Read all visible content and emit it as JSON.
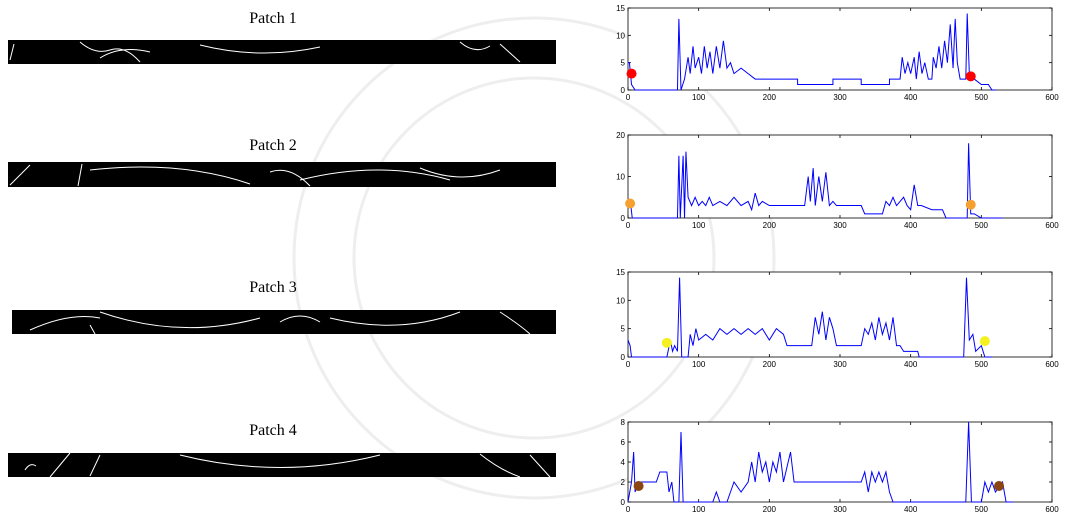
{
  "patches": [
    {
      "label": "Patch 1"
    },
    {
      "label": "Patch 2"
    },
    {
      "label": "Patch 3"
    },
    {
      "label": "Patch 4"
    }
  ],
  "chart_data": [
    {
      "type": "line",
      "xlim": [
        0,
        600
      ],
      "ylim": [
        0,
        15
      ],
      "xticks": [
        0,
        100,
        200,
        300,
        400,
        500,
        600
      ],
      "yticks": [
        0,
        5,
        10,
        15
      ],
      "x": [
        0,
        2,
        5,
        10,
        70,
        72,
        75,
        80,
        85,
        88,
        92,
        95,
        100,
        104,
        108,
        112,
        116,
        120,
        125,
        130,
        135,
        140,
        145,
        150,
        160,
        170,
        180,
        240,
        240,
        290,
        290,
        330,
        330,
        370,
        370,
        385,
        388,
        392,
        396,
        400,
        405,
        408,
        412,
        416,
        420,
        425,
        430,
        432,
        436,
        440,
        444,
        448,
        452,
        456,
        460,
        463,
        466,
        470,
        478,
        480,
        483,
        490,
        500,
        510,
        515,
        520
      ],
      "series": [
        {
          "color": "#0000ff",
          "values": [
            5,
            5,
            1,
            0,
            0,
            13,
            0,
            2,
            6,
            3,
            8,
            4,
            6,
            3,
            8,
            4,
            7,
            3,
            8,
            4,
            9,
            4,
            5,
            3,
            4,
            3,
            2,
            2,
            1,
            1,
            2,
            2,
            1,
            1,
            2,
            2,
            6,
            3,
            5,
            3,
            6,
            2,
            7,
            3,
            5,
            2,
            2,
            6,
            4,
            8,
            4,
            9,
            5,
            12,
            4,
            13,
            5,
            2,
            2,
            14,
            3,
            2,
            1,
            1,
            0,
            0
          ]
        }
      ],
      "points": {
        "color": "#ff0000",
        "x": [
          5,
          485
        ],
        "values": [
          3,
          2.5
        ]
      }
    },
    {
      "type": "line",
      "xlim": [
        0,
        600
      ],
      "ylim": [
        0,
        20
      ],
      "xticks": [
        0,
        100,
        200,
        300,
        400,
        500,
        600
      ],
      "yticks": [
        0,
        10,
        20
      ],
      "x": [
        0,
        4,
        6,
        70,
        72,
        74,
        78,
        80,
        82,
        85,
        90,
        95,
        100,
        105,
        110,
        115,
        120,
        130,
        140,
        150,
        160,
        170,
        175,
        180,
        185,
        190,
        200,
        210,
        250,
        255,
        258,
        262,
        265,
        270,
        275,
        280,
        285,
        290,
        295,
        330,
        335,
        360,
        365,
        370,
        375,
        380,
        385,
        390,
        395,
        400,
        405,
        410,
        415,
        430,
        445,
        450,
        480,
        482,
        485,
        490,
        500,
        530
      ],
      "series": [
        {
          "color": "#0000ff",
          "values": [
            3,
            3,
            0,
            0,
            15,
            0,
            15,
            0,
            16,
            5,
            3,
            5,
            3,
            4,
            3,
            5,
            3,
            4,
            3,
            5,
            3,
            4,
            2,
            6,
            3,
            4,
            3,
            3,
            3,
            10,
            4,
            12,
            3,
            10,
            4,
            11,
            3,
            4,
            3,
            3,
            1,
            1,
            4,
            3,
            5,
            3,
            4,
            5,
            3,
            2,
            8,
            3,
            3,
            2,
            2,
            0,
            0,
            18,
            1,
            1,
            0,
            0
          ]
        }
      ],
      "points": {
        "color": "#f5a030",
        "x": [
          3,
          485
        ],
        "values": [
          3.5,
          3.2
        ]
      }
    },
    {
      "type": "line",
      "xlim": [
        0,
        600
      ],
      "ylim": [
        0,
        15
      ],
      "xticks": [
        0,
        100,
        200,
        300,
        400,
        500,
        600
      ],
      "yticks": [
        0,
        5,
        10,
        15
      ],
      "x": [
        0,
        3,
        5,
        55,
        60,
        63,
        66,
        70,
        73,
        76,
        85,
        88,
        92,
        96,
        100,
        110,
        120,
        130,
        140,
        150,
        160,
        170,
        180,
        190,
        200,
        210,
        220,
        225,
        260,
        265,
        270,
        275,
        280,
        285,
        290,
        295,
        330,
        335,
        340,
        345,
        350,
        355,
        360,
        365,
        370,
        375,
        380,
        385,
        390,
        410,
        412,
        475,
        479,
        483,
        488,
        492,
        500,
        505,
        515
      ],
      "series": [
        {
          "color": "#0000ff",
          "values": [
            3,
            2,
            0,
            0,
            3,
            1,
            2,
            1,
            14,
            0,
            0,
            4,
            2,
            5,
            3,
            4,
            3,
            5,
            4,
            5,
            4,
            5,
            4,
            5,
            3,
            5,
            4,
            2,
            2,
            7,
            4,
            8,
            3,
            7,
            5,
            2,
            2,
            5,
            4,
            6,
            3,
            7,
            4,
            6,
            3,
            7,
            2,
            2,
            1,
            1,
            0,
            0,
            14,
            3,
            4,
            1,
            2,
            0,
            0
          ]
        }
      ],
      "points": {
        "color": "#f5f020",
        "x": [
          55,
          505
        ],
        "values": [
          2.5,
          2.8
        ]
      }
    },
    {
      "type": "line",
      "xlim": [
        0,
        600
      ],
      "ylim": [
        0,
        8
      ],
      "xticks": [
        0,
        100,
        200,
        300,
        400,
        500,
        600
      ],
      "yticks": [
        0,
        2,
        4,
        6,
        8
      ],
      "x": [
        0,
        5,
        8,
        10,
        15,
        40,
        45,
        55,
        58,
        62,
        65,
        72,
        75,
        78,
        120,
        125,
        130,
        140,
        145,
        150,
        160,
        170,
        175,
        180,
        185,
        190,
        195,
        200,
        205,
        210,
        215,
        220,
        230,
        235,
        330,
        335,
        340,
        345,
        350,
        355,
        360,
        365,
        370,
        375,
        380,
        478,
        482,
        486,
        500,
        505,
        510,
        515,
        520,
        530,
        535,
        545
      ],
      "series": [
        {
          "color": "#0000ff",
          "values": [
            0,
            2,
            5,
            1,
            2,
            2,
            3,
            3,
            1,
            2,
            0,
            0,
            7,
            0,
            0,
            1,
            0,
            0,
            1,
            2,
            1,
            2,
            4,
            2,
            5,
            3,
            4,
            2,
            4,
            3,
            5,
            2,
            5,
            2,
            2,
            3,
            1,
            3,
            2,
            3,
            2,
            3,
            1,
            0,
            0,
            0,
            8,
            0,
            0,
            2,
            1,
            2,
            1,
            2,
            0,
            0
          ]
        }
      ],
      "points": {
        "color": "#8b4513",
        "x": [
          15,
          525
        ],
        "values": [
          1.6,
          1.6
        ]
      }
    }
  ]
}
